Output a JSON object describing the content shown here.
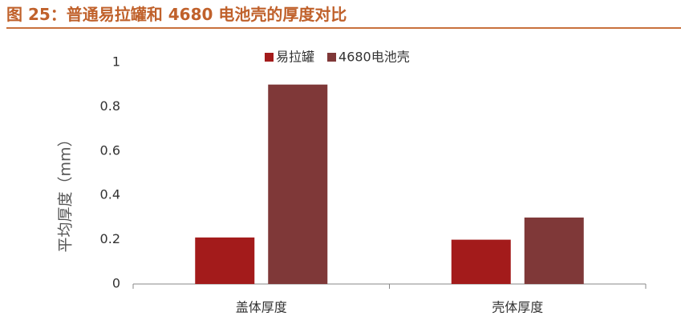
{
  "chart_data": {
    "type": "bar",
    "title": "图 25：普通易拉罐和 4680 电池壳的厚度对比",
    "y_label": "平均厚度（mm）",
    "categories": [
      "盖体厚度",
      "壳体厚度"
    ],
    "series": [
      {
        "name": "易拉罐",
        "color": "#a31b1b",
        "values": [
          0.21,
          0.2
        ]
      },
      {
        "name": "4680电池壳",
        "color": "#7f3838",
        "values": [
          0.9,
          0.3
        ]
      }
    ],
    "ylim": [
      0,
      1
    ],
    "yticks": [
      0,
      0.2,
      0.4,
      0.6,
      0.8,
      1
    ],
    "grid": false,
    "legend": "top"
  }
}
